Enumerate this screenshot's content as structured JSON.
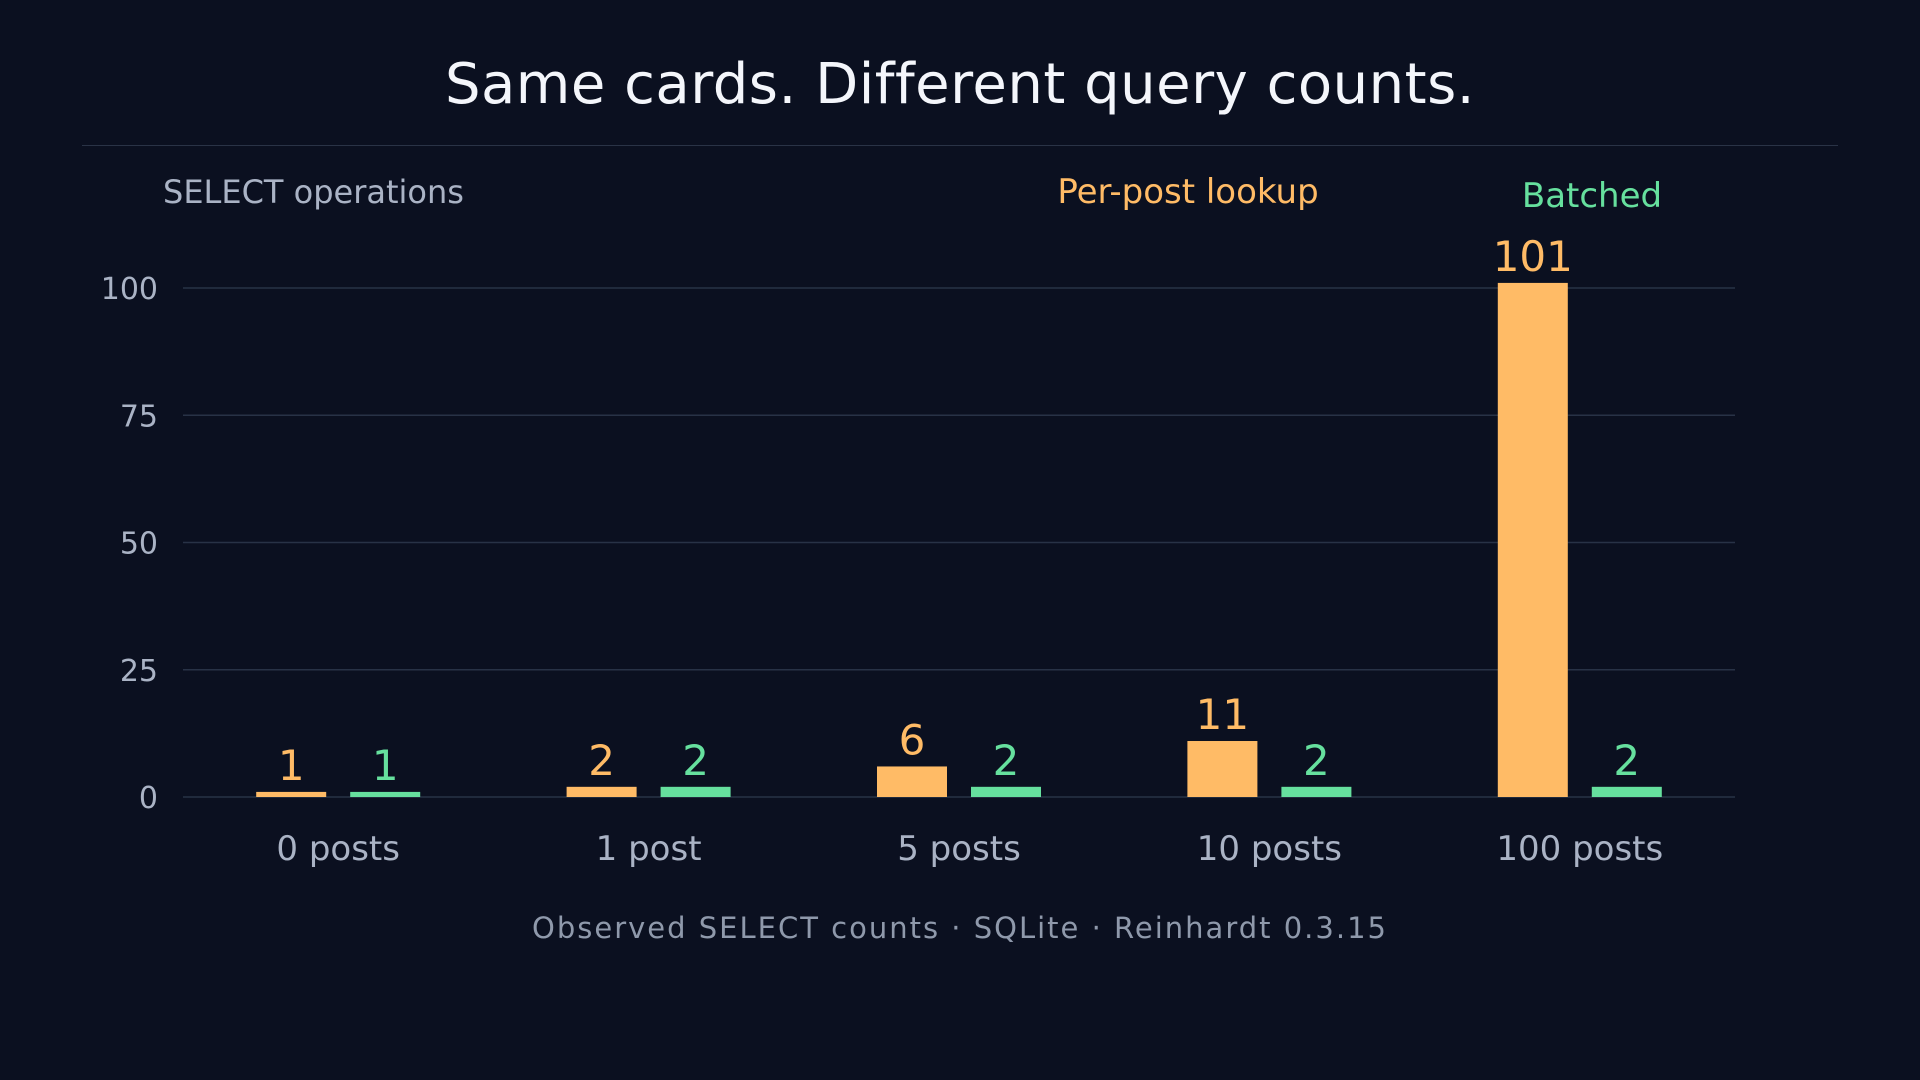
{
  "title": "Same cards. Different query counts.",
  "footer": "Observed SELECT counts · SQLite · Reinhardt 0.3.15",
  "colors": {
    "background": "#0b1020",
    "per_post": "#ffbb66",
    "batched": "#66e09e",
    "grid": "#283246",
    "text_muted": "#aab3c5"
  },
  "chart_data": {
    "type": "bar",
    "title": "Same cards. Different query counts.",
    "ylabel": "SELECT operations",
    "xlabel": "",
    "categories": [
      "0 posts",
      "1 post",
      "5 posts",
      "10 posts",
      "100 posts"
    ],
    "series": [
      {
        "name": "Per-post lookup",
        "values": [
          1,
          2,
          6,
          11,
          101
        ],
        "color": "#ffbb66"
      },
      {
        "name": "Batched",
        "values": [
          1,
          2,
          2,
          2,
          2
        ],
        "color": "#66e09e"
      }
    ],
    "ylim": [
      0,
      100
    ],
    "yticks": [
      0,
      25,
      50,
      75,
      100
    ],
    "grid": true,
    "legend_placement": "top-right"
  }
}
